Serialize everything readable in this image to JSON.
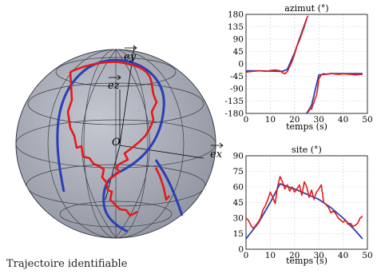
{
  "caption": "Trajectoire identifiable",
  "sphere": {
    "axis_labels": {
      "ex": "e_x",
      "ey": "e_y",
      "ez": "e_z",
      "origin": "O"
    },
    "colors": {
      "sphere_fill": "#a9adb8",
      "grid": "#3a3d45",
      "model": "#2a3fb6",
      "measure": "#e21b1b"
    }
  },
  "chart_data": [
    {
      "type": "line",
      "title": "azimut (°)",
      "xlabel": "temps (s)",
      "ylabel": "",
      "xlim": [
        0,
        50
      ],
      "ylim": [
        -180,
        180
      ],
      "xticks": [
        0,
        10,
        20,
        30,
        40,
        50
      ],
      "yticks": [
        180,
        135,
        90,
        45,
        0,
        -45,
        -90,
        -135,
        -180
      ],
      "grid": true,
      "series": [
        {
          "color": "#2a3fb6",
          "x": [
            0,
            5,
            10,
            15,
            17,
            20,
            25,
            25.01,
            27,
            30,
            35,
            40,
            45,
            48
          ],
          "y": [
            -25,
            -25,
            -26,
            -27,
            -20,
            40,
            165,
            -180,
            -150,
            -40,
            -35,
            -35,
            -35,
            -35
          ]
        },
        {
          "color": "#e21b1b",
          "x": [
            0,
            2,
            4,
            6,
            8,
            10,
            12,
            14,
            15,
            16,
            17,
            18,
            19,
            20,
            21,
            22,
            23,
            24,
            25,
            25.5,
            25.6,
            26,
            26.5,
            27,
            27.5,
            28,
            28.5,
            29,
            29.5,
            30,
            31,
            32,
            33,
            35,
            38,
            40,
            43,
            45,
            48
          ],
          "y": [
            -30,
            -28,
            -26,
            -25,
            -27,
            -24,
            -22,
            -25,
            -32,
            -36,
            -28,
            -10,
            10,
            35,
            65,
            85,
            110,
            135,
            165,
            175,
            -175,
            -170,
            -160,
            -165,
            -150,
            -140,
            -125,
            -115,
            -90,
            -55,
            -40,
            -35,
            -38,
            -35,
            -38,
            -36,
            -38,
            -40,
            -38
          ]
        },
        {
          "color": "#d12ad1",
          "x": [
            25.5,
            25.5
          ],
          "y": [
            180,
            -180
          ]
        }
      ]
    },
    {
      "type": "line",
      "title": "site (°)",
      "xlabel": "temps (s)",
      "ylabel": "",
      "xlim": [
        0,
        50
      ],
      "ylim": [
        0,
        90
      ],
      "xticks": [
        0,
        10,
        20,
        30,
        40,
        50
      ],
      "yticks": [
        90,
        75,
        60,
        45,
        30,
        15,
        0
      ],
      "grid": true,
      "series": [
        {
          "color": "#2a3fb6",
          "x": [
            0,
            5,
            10,
            14,
            20,
            25,
            30,
            35,
            40,
            45,
            48
          ],
          "y": [
            10,
            25,
            45,
            63,
            58,
            53,
            48,
            40,
            30,
            18,
            10
          ]
        },
        {
          "color": "#e21b1b",
          "x": [
            0,
            1,
            2,
            3,
            4,
            5,
            6,
            7,
            8,
            9,
            10,
            11,
            12,
            13,
            14,
            15,
            16,
            17,
            18,
            19,
            20,
            21,
            22,
            23,
            24,
            25,
            26,
            27,
            28,
            29,
            30,
            31,
            32,
            33,
            34,
            35,
            36,
            37,
            38,
            39,
            40,
            41,
            42,
            43,
            44,
            45,
            46,
            47,
            48
          ],
          "y": [
            30,
            28,
            23,
            20,
            23,
            26,
            30,
            38,
            42,
            48,
            55,
            50,
            44,
            60,
            70,
            65,
            58,
            62,
            56,
            60,
            55,
            58,
            62,
            52,
            65,
            60,
            50,
            57,
            48,
            55,
            58,
            62,
            45,
            43,
            40,
            35,
            37,
            34,
            30,
            28,
            26,
            28,
            24,
            25,
            22,
            23,
            25,
            30,
            32
          ]
        }
      ]
    }
  ]
}
